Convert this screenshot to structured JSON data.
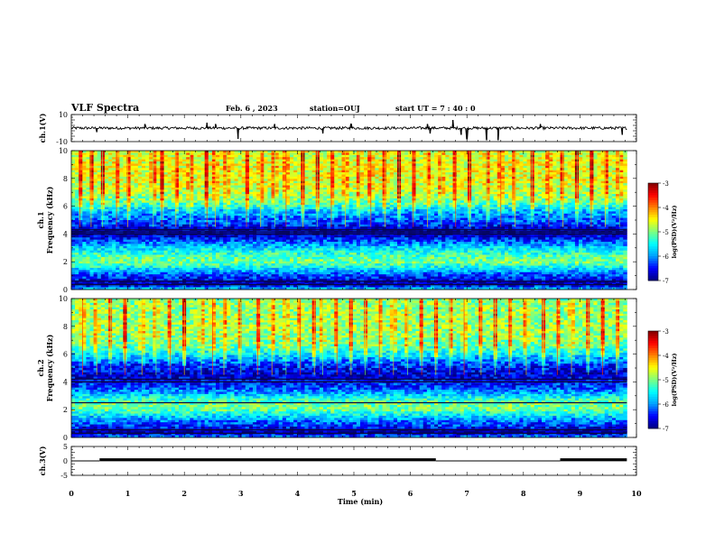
{
  "header": {
    "title": "VLF Spectra",
    "date": "Feb. 6 , 2023",
    "station": "station=OUJ",
    "start_ut": "start UT = 7 : 40 : 0"
  },
  "colors": {
    "background": "#ffffff",
    "axes": "#000000",
    "colormap": [
      "#00007f",
      "#0000ff",
      "#00a0ff",
      "#00ffff",
      "#7fff7f",
      "#ffff00",
      "#ff7f00",
      "#ff0000",
      "#7f0000"
    ]
  },
  "chart_data": [
    {
      "type": "line",
      "name": "ch1-waveform",
      "ylabel": "ch.1(V)",
      "ylim": [
        -10,
        10
      ],
      "yticks": [
        "10",
        "-10"
      ],
      "xlim": [
        0,
        10
      ],
      "data_extent_min": 9.83,
      "baseline_v": 0.0,
      "noise_amplitude_v": 1.0,
      "spikes": [
        {
          "x": 0.45,
          "y": -3
        },
        {
          "x": 1.3,
          "y": 3
        },
        {
          "x": 2.4,
          "y": 4
        },
        {
          "x": 2.55,
          "y": 3
        },
        {
          "x": 2.95,
          "y": -8
        },
        {
          "x": 3.6,
          "y": 3
        },
        {
          "x": 4.45,
          "y": -4
        },
        {
          "x": 4.95,
          "y": 3
        },
        {
          "x": 6.3,
          "y": 3
        },
        {
          "x": 6.35,
          "y": -4
        },
        {
          "x": 6.75,
          "y": 6
        },
        {
          "x": 6.9,
          "y": -5
        },
        {
          "x": 7.0,
          "y": -8
        },
        {
          "x": 7.35,
          "y": -9
        },
        {
          "x": 7.55,
          "y": -9
        },
        {
          "x": 8.3,
          "y": 3
        },
        {
          "x": 9.75,
          "y": -5
        }
      ]
    },
    {
      "type": "heatmap",
      "name": "ch1-spectrogram",
      "ylabel": "ch.1 Frequency (kHz)",
      "ylim": [
        0,
        10
      ],
      "yticks": [
        "0",
        "2",
        "4",
        "6",
        "8",
        "10"
      ],
      "xlim": [
        0,
        10
      ],
      "data_extent_min": 9.83,
      "colorbar": {
        "label": "log(PSD)(V²/Hz)",
        "range": [
          -7,
          -3
        ],
        "ticks": [
          "-3",
          "-4",
          "-5",
          "-6",
          "-7"
        ]
      },
      "profile_khz": [
        {
          "f": 0.0,
          "v": -5.6
        },
        {
          "f": 0.4,
          "v": -6.9
        },
        {
          "f": 0.8,
          "v": -6.5
        },
        {
          "f": 1.2,
          "v": -6.1
        },
        {
          "f": 1.6,
          "v": -5.5
        },
        {
          "f": 2.0,
          "v": -5.0
        },
        {
          "f": 2.4,
          "v": -5.2
        },
        {
          "f": 2.8,
          "v": -5.5
        },
        {
          "f": 3.2,
          "v": -5.9
        },
        {
          "f": 3.6,
          "v": -6.4
        },
        {
          "f": 4.0,
          "v": -6.8
        },
        {
          "f": 4.4,
          "v": -6.7
        },
        {
          "f": 4.8,
          "v": -6.3
        },
        {
          "f": 5.2,
          "v": -6.1
        },
        {
          "f": 5.6,
          "v": -5.9
        },
        {
          "f": 6.0,
          "v": -5.4
        },
        {
          "f": 6.5,
          "v": -5.0
        },
        {
          "f": 7.0,
          "v": -4.8
        },
        {
          "f": 8.0,
          "v": -4.6
        },
        {
          "f": 9.0,
          "v": -4.6
        },
        {
          "f": 10.0,
          "v": -4.7
        }
      ],
      "lines_khz": [
        0.35,
        0.6,
        4.0,
        4.15,
        4.3
      ],
      "bursts_min": [
        0.15,
        0.35,
        0.55,
        0.8,
        1.0,
        1.45,
        1.6,
        1.85,
        2.1,
        2.4,
        2.55,
        2.75,
        3.1,
        3.35,
        3.6,
        3.8,
        4.1,
        4.35,
        4.6,
        4.85,
        5.1,
        5.3,
        5.55,
        5.8,
        6.05,
        6.3,
        6.55,
        6.8,
        7.05,
        7.35,
        7.6,
        7.85,
        8.15,
        8.45,
        8.7,
        8.95,
        9.2,
        9.45,
        9.7
      ]
    },
    {
      "type": "heatmap",
      "name": "ch2-spectrogram",
      "ylabel": "ch.2 Frequency (kHz)",
      "ylim": [
        0,
        10
      ],
      "yticks": [
        "0",
        "2",
        "4",
        "6",
        "8",
        "10"
      ],
      "xlim": [
        0,
        10
      ],
      "data_extent_min": 9.83,
      "colorbar": {
        "label": "log(PSD)(V²/Hz)",
        "range": [
          -7,
          -3
        ],
        "ticks": [
          "-3",
          "-4",
          "-5",
          "-6",
          "-7"
        ]
      },
      "profile_khz": [
        {
          "f": 0.0,
          "v": -6.0
        },
        {
          "f": 0.4,
          "v": -6.9
        },
        {
          "f": 0.8,
          "v": -6.4
        },
        {
          "f": 1.2,
          "v": -6.1
        },
        {
          "f": 1.6,
          "v": -5.6
        },
        {
          "f": 2.0,
          "v": -5.1
        },
        {
          "f": 2.4,
          "v": -5.0
        },
        {
          "f": 2.8,
          "v": -5.4
        },
        {
          "f": 3.2,
          "v": -5.9
        },
        {
          "f": 3.6,
          "v": -6.3
        },
        {
          "f": 4.0,
          "v": -6.5
        },
        {
          "f": 4.4,
          "v": -6.7
        },
        {
          "f": 4.8,
          "v": -6.6
        },
        {
          "f": 5.2,
          "v": -6.4
        },
        {
          "f": 5.6,
          "v": -6.0
        },
        {
          "f": 6.0,
          "v": -5.6
        },
        {
          "f": 6.5,
          "v": -5.2
        },
        {
          "f": 7.0,
          "v": -5.0
        },
        {
          "f": 8.0,
          "v": -4.9
        },
        {
          "f": 9.0,
          "v": -4.9
        },
        {
          "f": 10.0,
          "v": -5.0
        }
      ],
      "lines_khz": [
        0.3,
        0.55,
        2.5,
        4.0,
        4.2
      ],
      "bursts_min": [
        0.2,
        0.45,
        0.7,
        0.95,
        1.25,
        1.5,
        1.75,
        2.0,
        2.3,
        2.5,
        2.7,
        3.0,
        3.3,
        3.55,
        3.8,
        4.05,
        4.3,
        4.45,
        4.7,
        4.95,
        5.2,
        5.45,
        5.7,
        5.95,
        6.2,
        6.45,
        6.7,
        6.95,
        7.25,
        7.5,
        7.75,
        8.05,
        8.35,
        8.6,
        8.85,
        9.15,
        9.4,
        9.65
      ]
    },
    {
      "type": "line",
      "name": "ch3-signal",
      "ylabel": "ch.3(V)",
      "ylim": [
        -5,
        5
      ],
      "yticks": [
        "5",
        "0",
        "-5"
      ],
      "xlim": [
        0,
        10
      ],
      "xlabel": "Time (min)",
      "xticks": [
        "0",
        "1",
        "2",
        "3",
        "4",
        "5",
        "6",
        "7",
        "8",
        "9",
        "10"
      ],
      "segments": [
        {
          "x0": 0.0,
          "x1": 0.5,
          "y": 0.0
        },
        {
          "x0": 0.5,
          "x1": 6.45,
          "y": 0.4
        },
        {
          "x0": 6.45,
          "x1": 8.65,
          "y": 0.0
        },
        {
          "x0": 8.65,
          "x1": 9.83,
          "y": 0.4
        }
      ]
    }
  ]
}
